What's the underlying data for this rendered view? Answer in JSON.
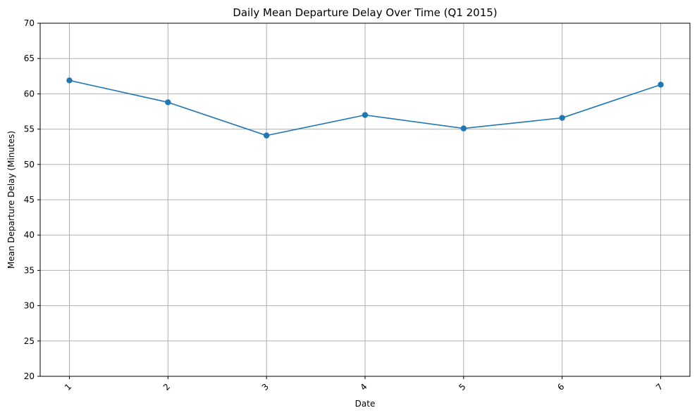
{
  "chart_data": {
    "type": "line",
    "title": "Daily Mean Departure Delay Over Time (Q1 2015)",
    "xlabel": "Date",
    "ylabel": "Mean Departure Delay (Minutes)",
    "x": [
      "1",
      "2",
      "3",
      "4",
      "5",
      "6",
      "7"
    ],
    "series": [
      {
        "values": [
          61.9,
          58.8,
          54.1,
          57.0,
          55.1,
          56.6,
          61.3
        ]
      }
    ],
    "ylim": [
      20,
      70
    ],
    "yticks": [
      20,
      25,
      30,
      35,
      40,
      45,
      50,
      55,
      60,
      65,
      70
    ],
    "grid": true,
    "x_tick_rotation": 45,
    "colors": {
      "line": "#1f77b4"
    }
  }
}
